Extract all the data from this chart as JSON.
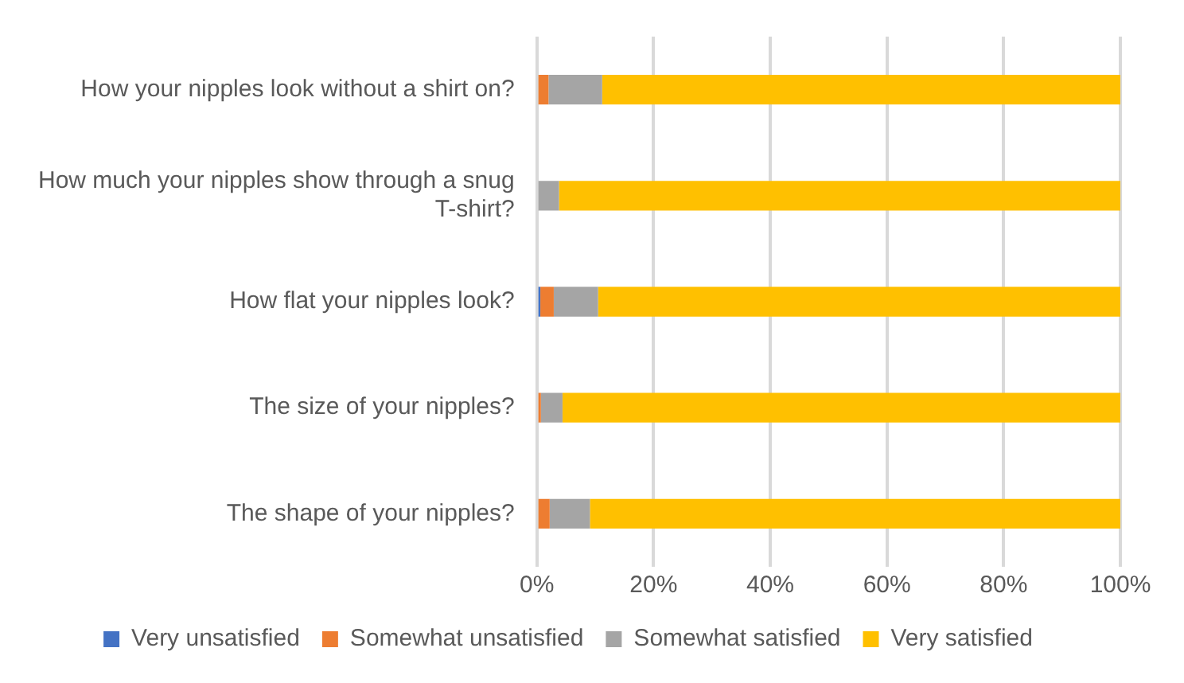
{
  "chart_data": {
    "type": "bar",
    "orientation": "horizontal",
    "stacked": true,
    "categories": [
      "How your nipples look without a shirt on?",
      "How much your nipples show through a snug T-shirt?",
      "How flat your nipples look?",
      "The size of your nipples?",
      "The shape of your nipples?"
    ],
    "series": [
      {
        "name": "Very unsatisfied",
        "color": "#4472c4",
        "values": [
          0,
          0,
          0.6,
          0,
          0
        ]
      },
      {
        "name": "Somewhat unsatisfied",
        "color": "#ed7d31",
        "values": [
          2,
          0,
          2.3,
          0.7,
          2.2
        ]
      },
      {
        "name": "Somewhat satisfied",
        "color": "#a5a5a5",
        "values": [
          9.2,
          3.8,
          7.6,
          3.7,
          6.9
        ]
      },
      {
        "name": "Very satisfied",
        "color": "#ffc000",
        "values": [
          88.8,
          96.2,
          89.5,
          95.6,
          90.9
        ]
      }
    ],
    "xlim": [
      0,
      100
    ],
    "xticks": [
      {
        "value": 0,
        "label": "0%"
      },
      {
        "value": 20,
        "label": "20%"
      },
      {
        "value": 40,
        "label": "40%"
      },
      {
        "value": 60,
        "label": "60%"
      },
      {
        "value": 80,
        "label": "80%"
      },
      {
        "value": 100,
        "label": "100%"
      }
    ],
    "grid": "x",
    "legend": "bottom"
  }
}
